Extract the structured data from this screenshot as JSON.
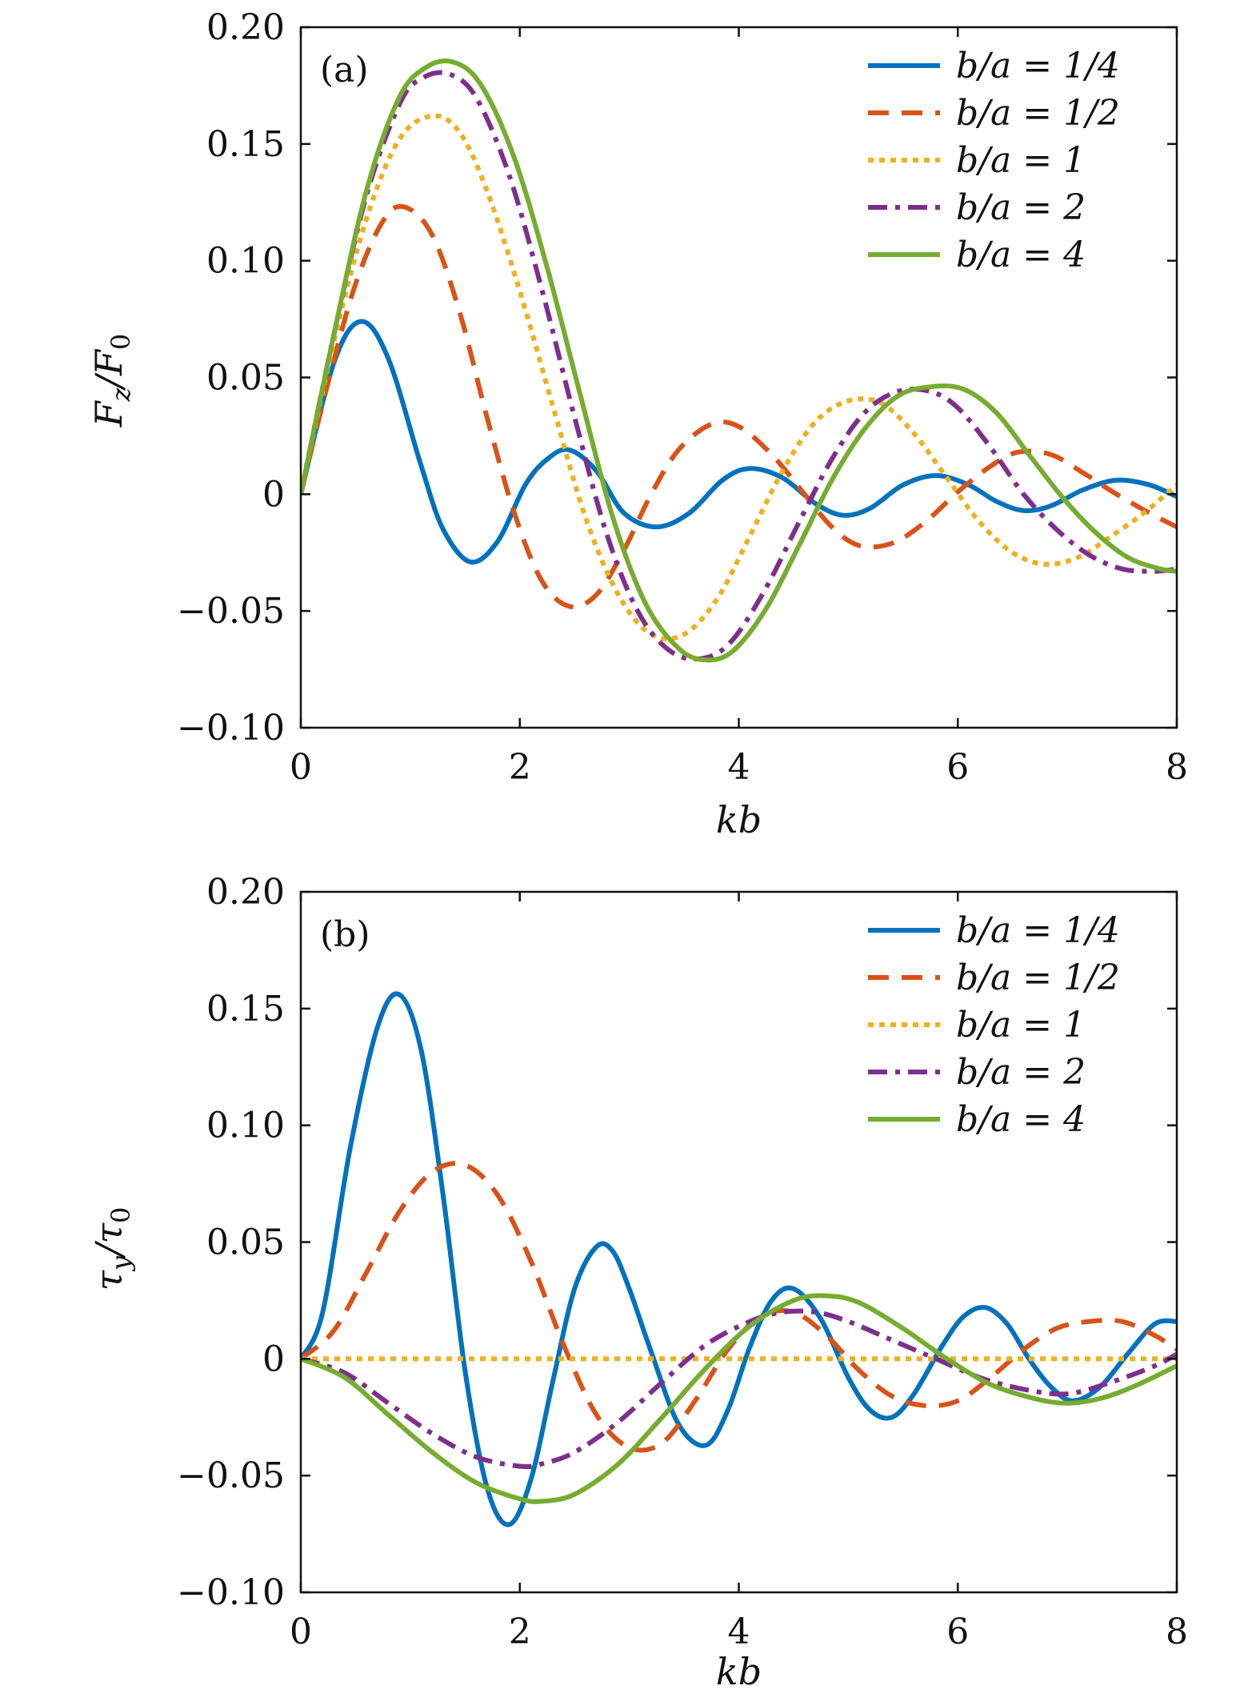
{
  "chart_data": [
    {
      "type": "line",
      "panel_label": "(a)",
      "xlabel": "kb",
      "ylabel": "F_z/F_0",
      "ylabel_main": "F",
      "ylabel_sub1": "z",
      "ylabel_sep": "/F",
      "ylabel_sub2": "0",
      "xlim": [
        0,
        8
      ],
      "ylim": [
        -0.1,
        0.2
      ],
      "xticks": [
        "0",
        "2",
        "4",
        "6",
        "8"
      ],
      "yticks": [
        "−0.10",
        "−0.05",
        "0",
        "0.05",
        "0.10",
        "0.15",
        "0.20"
      ],
      "legend_position": "top-right",
      "series": [
        {
          "name": "b/a = 1/4",
          "color": "#0072BD",
          "style": "solid",
          "x": [
            0,
            0.3,
            0.55,
            0.8,
            1.1,
            1.3,
            1.55,
            1.8,
            2.05,
            2.25,
            2.45,
            2.7,
            2.95,
            3.25,
            3.55,
            3.85,
            4.1,
            4.4,
            4.7,
            4.95,
            5.2,
            5.5,
            5.8,
            6.1,
            6.35,
            6.6,
            6.85,
            7.15,
            7.45,
            7.75,
            8.0
          ],
          "y": [
            0,
            0.056,
            0.074,
            0.058,
            0.012,
            -0.015,
            -0.029,
            -0.02,
            0.004,
            0.015,
            0.019,
            0.01,
            -0.008,
            -0.014,
            -0.008,
            0.006,
            0.011,
            0.007,
            -0.004,
            -0.009,
            -0.006,
            0.004,
            0.008,
            0.004,
            -0.003,
            -0.007,
            -0.005,
            0.002,
            0.006,
            0.004,
            -0.001
          ]
        },
        {
          "name": "b/a = 1/2",
          "color": "#D95319",
          "style": "dashed",
          "x": [
            0,
            0.25,
            0.5,
            0.75,
            0.95,
            1.2,
            1.45,
            1.7,
            1.95,
            2.2,
            2.45,
            2.7,
            2.95,
            3.2,
            3.45,
            3.75,
            4.0,
            4.3,
            4.6,
            4.85,
            5.1,
            5.4,
            5.7,
            6.0,
            6.3,
            6.55,
            6.85,
            7.15,
            7.45,
            7.75,
            8.0
          ],
          "y": [
            0,
            0.048,
            0.09,
            0.117,
            0.123,
            0.111,
            0.078,
            0.033,
            -0.008,
            -0.037,
            -0.048,
            -0.043,
            -0.024,
            0.0,
            0.019,
            0.03,
            0.029,
            0.017,
            0.0,
            -0.014,
            -0.022,
            -0.021,
            -0.012,
            0.001,
            0.012,
            0.018,
            0.017,
            0.009,
            0.0,
            -0.008,
            -0.014
          ]
        },
        {
          "name": "b/a = 1",
          "color": "#EDB120",
          "style": "dotted",
          "x": [
            0,
            0.3,
            0.6,
            0.9,
            1.2,
            1.45,
            1.7,
            2.0,
            2.3,
            2.6,
            2.9,
            3.2,
            3.5,
            3.8,
            4.1,
            4.4,
            4.7,
            5.0,
            5.3,
            5.6,
            5.9,
            6.2,
            6.5,
            6.8,
            7.1,
            7.4,
            7.7,
            8.0
          ],
          "y": [
            0,
            0.065,
            0.118,
            0.152,
            0.162,
            0.155,
            0.13,
            0.087,
            0.038,
            -0.01,
            -0.043,
            -0.06,
            -0.06,
            -0.045,
            -0.018,
            0.01,
            0.031,
            0.04,
            0.039,
            0.026,
            0.007,
            -0.012,
            -0.025,
            -0.03,
            -0.027,
            -0.018,
            -0.008,
            0.004
          ]
        },
        {
          "name": "b/a = 2",
          "color": "#7E2F8E",
          "style": "dashdot",
          "x": [
            0,
            0.3,
            0.6,
            0.9,
            1.1,
            1.35,
            1.6,
            1.9,
            2.2,
            2.5,
            2.8,
            3.1,
            3.4,
            3.7,
            3.95,
            4.25,
            4.55,
            4.85,
            5.15,
            5.45,
            5.75,
            6.0,
            6.3,
            6.6,
            6.9,
            7.2,
            7.5,
            7.8,
            8.0
          ],
          "y": [
            0,
            0.068,
            0.128,
            0.167,
            0.178,
            0.18,
            0.17,
            0.137,
            0.088,
            0.033,
            -0.018,
            -0.052,
            -0.068,
            -0.07,
            -0.062,
            -0.04,
            -0.012,
            0.015,
            0.035,
            0.044,
            0.044,
            0.037,
            0.02,
            0.0,
            -0.015,
            -0.026,
            -0.032,
            -0.033,
            -0.032
          ]
        },
        {
          "name": "b/a = 4",
          "color": "#77AC30",
          "style": "solid",
          "x": [
            0,
            0.3,
            0.6,
            0.9,
            1.15,
            1.4,
            1.65,
            1.95,
            2.25,
            2.55,
            2.85,
            3.15,
            3.45,
            3.7,
            3.95,
            4.25,
            4.55,
            4.85,
            5.15,
            5.45,
            5.75,
            6.05,
            6.35,
            6.65,
            6.95,
            7.25,
            7.55,
            7.85,
            8.0
          ],
          "y": [
            0,
            0.068,
            0.13,
            0.17,
            0.183,
            0.185,
            0.175,
            0.144,
            0.097,
            0.043,
            -0.01,
            -0.047,
            -0.066,
            -0.071,
            -0.067,
            -0.049,
            -0.022,
            0.006,
            0.028,
            0.042,
            0.046,
            0.045,
            0.035,
            0.017,
            -0.001,
            -0.016,
            -0.027,
            -0.032,
            -0.033
          ]
        }
      ]
    },
    {
      "type": "line",
      "panel_label": "(b)",
      "xlabel": "kb",
      "ylabel": "τ_y/τ_0",
      "ylabel_main": "τ",
      "ylabel_sub1": "y",
      "ylabel_sep": "/τ",
      "ylabel_sub2": "0",
      "xlim": [
        0,
        8
      ],
      "ylim": [
        -0.1,
        0.2
      ],
      "xticks": [
        "0",
        "2",
        "4",
        "6",
        "8"
      ],
      "yticks": [
        "−0.10",
        "−0.05",
        "0",
        "0.05",
        "0.10",
        "0.15",
        "0.20"
      ],
      "legend_position": "top-right",
      "series": [
        {
          "name": "b/a = 1/4",
          "color": "#0072BD",
          "style": "solid",
          "x": [
            0,
            0.2,
            0.45,
            0.7,
            0.9,
            1.1,
            1.3,
            1.5,
            1.7,
            1.9,
            2.1,
            2.3,
            2.5,
            2.7,
            2.85,
            3.0,
            3.2,
            3.45,
            3.7,
            3.9,
            4.1,
            4.3,
            4.5,
            4.75,
            5.0,
            5.2,
            5.4,
            5.6,
            5.85,
            6.05,
            6.25,
            6.45,
            6.65,
            6.85,
            7.05,
            7.3,
            7.55,
            7.8,
            8.0
          ],
          "y": [
            0,
            0.02,
            0.09,
            0.142,
            0.156,
            0.132,
            0.07,
            -0.005,
            -0.055,
            -0.071,
            -0.052,
            -0.01,
            0.03,
            0.048,
            0.046,
            0.03,
            0.003,
            -0.028,
            -0.037,
            -0.022,
            0.005,
            0.025,
            0.03,
            0.017,
            -0.008,
            -0.022,
            -0.025,
            -0.015,
            0.005,
            0.018,
            0.022,
            0.015,
            0.0,
            -0.012,
            -0.018,
            -0.012,
            0.002,
            0.015,
            0.016
          ]
        },
        {
          "name": "b/a = 1/2",
          "color": "#D95319",
          "style": "dashed",
          "x": [
            0,
            0.3,
            0.6,
            0.9,
            1.2,
            1.5,
            1.8,
            2.1,
            2.4,
            2.7,
            3.0,
            3.3,
            3.6,
            3.9,
            4.2,
            4.5,
            4.8,
            5.1,
            5.4,
            5.7,
            6.0,
            6.3,
            6.6,
            6.9,
            7.2,
            7.5,
            7.8,
            8.0
          ],
          "y": [
            0,
            0.012,
            0.037,
            0.063,
            0.08,
            0.083,
            0.07,
            0.042,
            0.006,
            -0.024,
            -0.038,
            -0.036,
            -0.018,
            0.004,
            0.018,
            0.02,
            0.01,
            -0.005,
            -0.016,
            -0.02,
            -0.018,
            -0.008,
            0.004,
            0.013,
            0.016,
            0.016,
            0.01,
            0.004
          ]
        },
        {
          "name": "b/a = 1",
          "color": "#EDB120",
          "style": "dotted",
          "x": [
            0,
            8
          ],
          "y": [
            0,
            0
          ]
        },
        {
          "name": "b/a = 2",
          "color": "#7E2F8E",
          "style": "dashdot",
          "x": [
            0,
            0.4,
            0.8,
            1.2,
            1.6,
            2.0,
            2.2,
            2.5,
            2.9,
            3.3,
            3.7,
            4.1,
            4.4,
            4.7,
            5.0,
            5.4,
            5.8,
            6.2,
            6.6,
            7.0,
            7.4,
            7.8,
            8.0
          ],
          "y": [
            0,
            -0.006,
            -0.019,
            -0.032,
            -0.042,
            -0.046,
            -0.045,
            -0.04,
            -0.027,
            -0.01,
            0.006,
            0.016,
            0.02,
            0.02,
            0.016,
            0.008,
            0.0,
            -0.008,
            -0.013,
            -0.015,
            -0.01,
            -0.003,
            0.002
          ]
        },
        {
          "name": "b/a = 4",
          "color": "#77AC30",
          "style": "solid",
          "x": [
            0,
            0.4,
            0.8,
            1.2,
            1.6,
            2.0,
            2.2,
            2.5,
            2.9,
            3.3,
            3.7,
            4.1,
            4.5,
            4.8,
            5.1,
            5.5,
            5.9,
            6.3,
            6.7,
            7.0,
            7.3,
            7.6,
            8.0
          ],
          "y": [
            0,
            -0.008,
            -0.024,
            -0.04,
            -0.053,
            -0.06,
            -0.061,
            -0.058,
            -0.045,
            -0.025,
            -0.004,
            0.014,
            0.025,
            0.027,
            0.024,
            0.013,
            0.0,
            -0.011,
            -0.017,
            -0.019,
            -0.017,
            -0.012,
            -0.003
          ]
        }
      ]
    }
  ]
}
